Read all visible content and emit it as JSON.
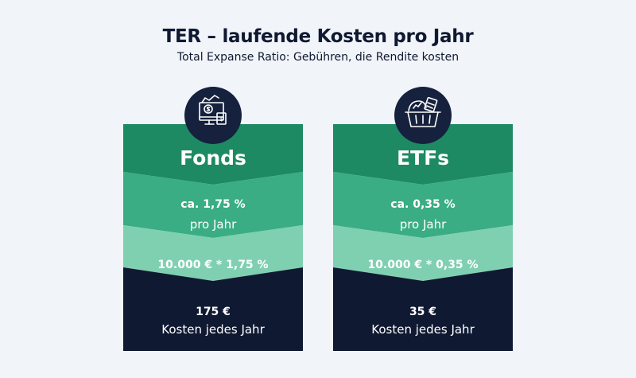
{
  "header": {
    "title": "TER – laufende Kosten pro Jahr",
    "subtitle": "Total Expanse Ratio: Gebühren, die Rendite kosten"
  },
  "colors": {
    "band_dark_green": "#1d8a64",
    "band_mid_green": "#3aad84",
    "band_light_green": "#7fd0b0",
    "band_navy": "#101932",
    "icon_bg": "#15213d",
    "background": "#f1f4f9"
  },
  "cards": [
    {
      "icon": "fund-investment-icon",
      "heading": "Fonds",
      "ter": "ca. 1,75 %",
      "period": "pro Jahr",
      "calculation": "10.000 € * 1,75 %",
      "amount": "175 €",
      "amount_label": "Kosten jedes Jahr"
    },
    {
      "icon": "etf-basket-icon",
      "heading": "ETFs",
      "ter": "ca. 0,35 %",
      "period": "pro Jahr",
      "calculation": "10.000 € * 0,35 %",
      "amount": "35 €",
      "amount_label": "Kosten jedes Jahr"
    }
  ]
}
